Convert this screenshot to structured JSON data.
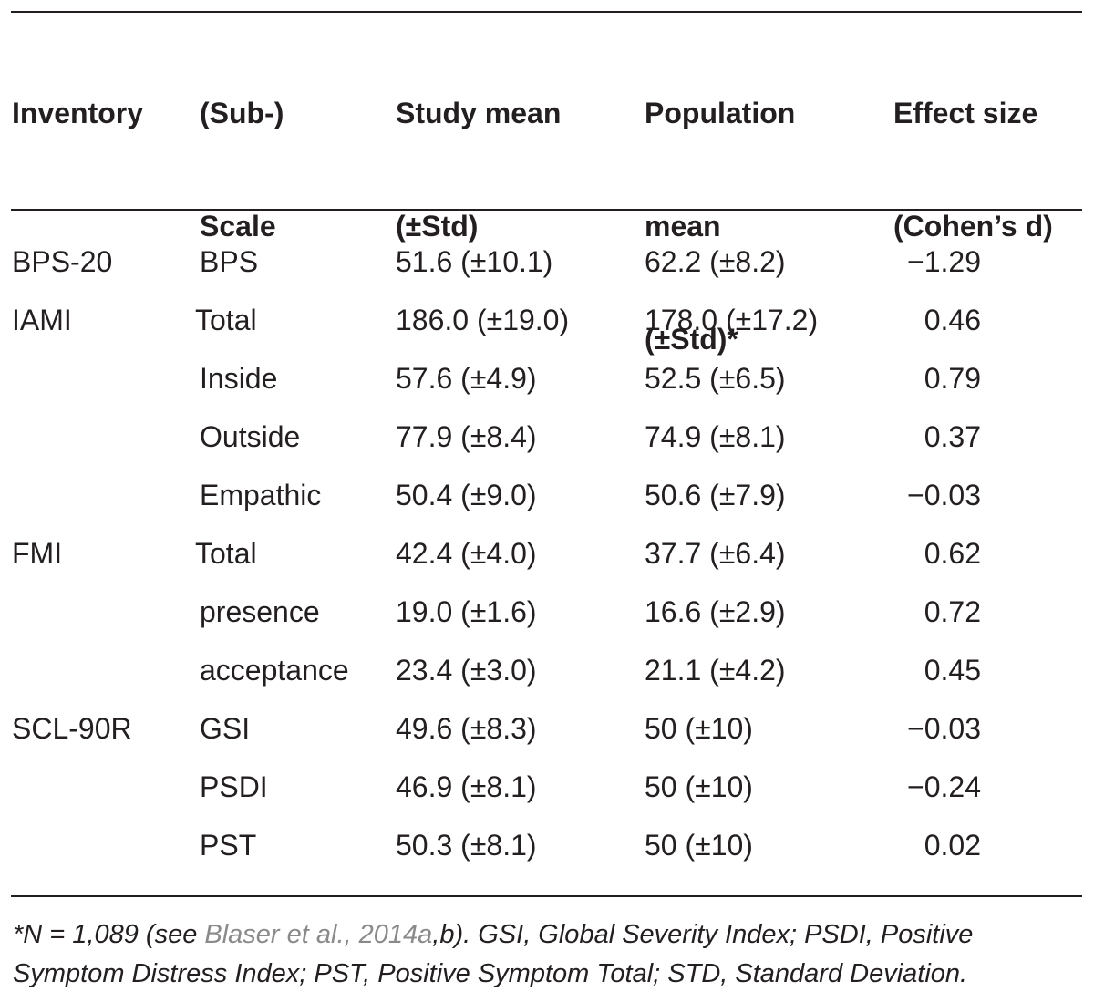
{
  "table": {
    "headers": {
      "inventory": [
        "Inventory"
      ],
      "scale": [
        "(Sub-)",
        "Scale"
      ],
      "study_mean": [
        "Study mean",
        "(±Std)"
      ],
      "population_mean": [
        "Population",
        "mean",
        "(±Std)*"
      ],
      "effect_size": [
        "Effect size",
        "(Cohen’s d)"
      ]
    },
    "rows": [
      {
        "inventory": "BPS-20",
        "scale": "BPS",
        "study": "51.6 (±10.1)",
        "population": "62.2 (±8.2)",
        "effect": "−1.29"
      },
      {
        "inventory": "IAMI",
        "scale": "Total",
        "study": "186.0 (±19.0)",
        "population": "178.0 (±17.2)",
        "effect": "0.46"
      },
      {
        "inventory": "",
        "scale": "Inside",
        "study": "57.6 (±4.9)",
        "population": "52.5 (±6.5)",
        "effect": "0.79"
      },
      {
        "inventory": "",
        "scale": "Outside",
        "study": "77.9 (±8.4)",
        "population": "74.9 (±8.1)",
        "effect": "0.37"
      },
      {
        "inventory": "",
        "scale": "Empathic",
        "study": "50.4 (±9.0)",
        "population": "50.6 (±7.9)",
        "effect": "−0.03"
      },
      {
        "inventory": "FMI",
        "scale": "Total",
        "study": "42.4 (±4.0)",
        "population": "37.7 (±6.4)",
        "effect": "0.62"
      },
      {
        "inventory": "",
        "scale": "presence",
        "study": "19.0 (±1.6)",
        "population": "16.6 (±2.9)",
        "effect": "0.72"
      },
      {
        "inventory": "",
        "scale": "acceptance",
        "study": "23.4 (±3.0)",
        "population": "21.1 (±4.2)",
        "effect": "0.45"
      },
      {
        "inventory": "SCL-90R",
        "scale": "GSI",
        "study": "49.6 (±8.3)",
        "population": "50 (±10)",
        "effect": "−0.03"
      },
      {
        "inventory": "",
        "scale": "PSDI",
        "study": "46.9 (±8.1)",
        "population": "50 (±10)",
        "effect": "−0.24"
      },
      {
        "inventory": "",
        "scale": "PST",
        "study": "50.3 (±8.1)",
        "population": "50 (±10)",
        "effect": "0.02"
      }
    ]
  },
  "footnote": {
    "prefix": "*N = 1,089 (see ",
    "citation": "Blaser et al., 2014a",
    "citation_suffix": ",b",
    "rest": "). GSI, Global Severity Index; PSDI, Positive Symptom Distress Index; PST, Positive Symptom Total; STD, Standard Deviation."
  }
}
